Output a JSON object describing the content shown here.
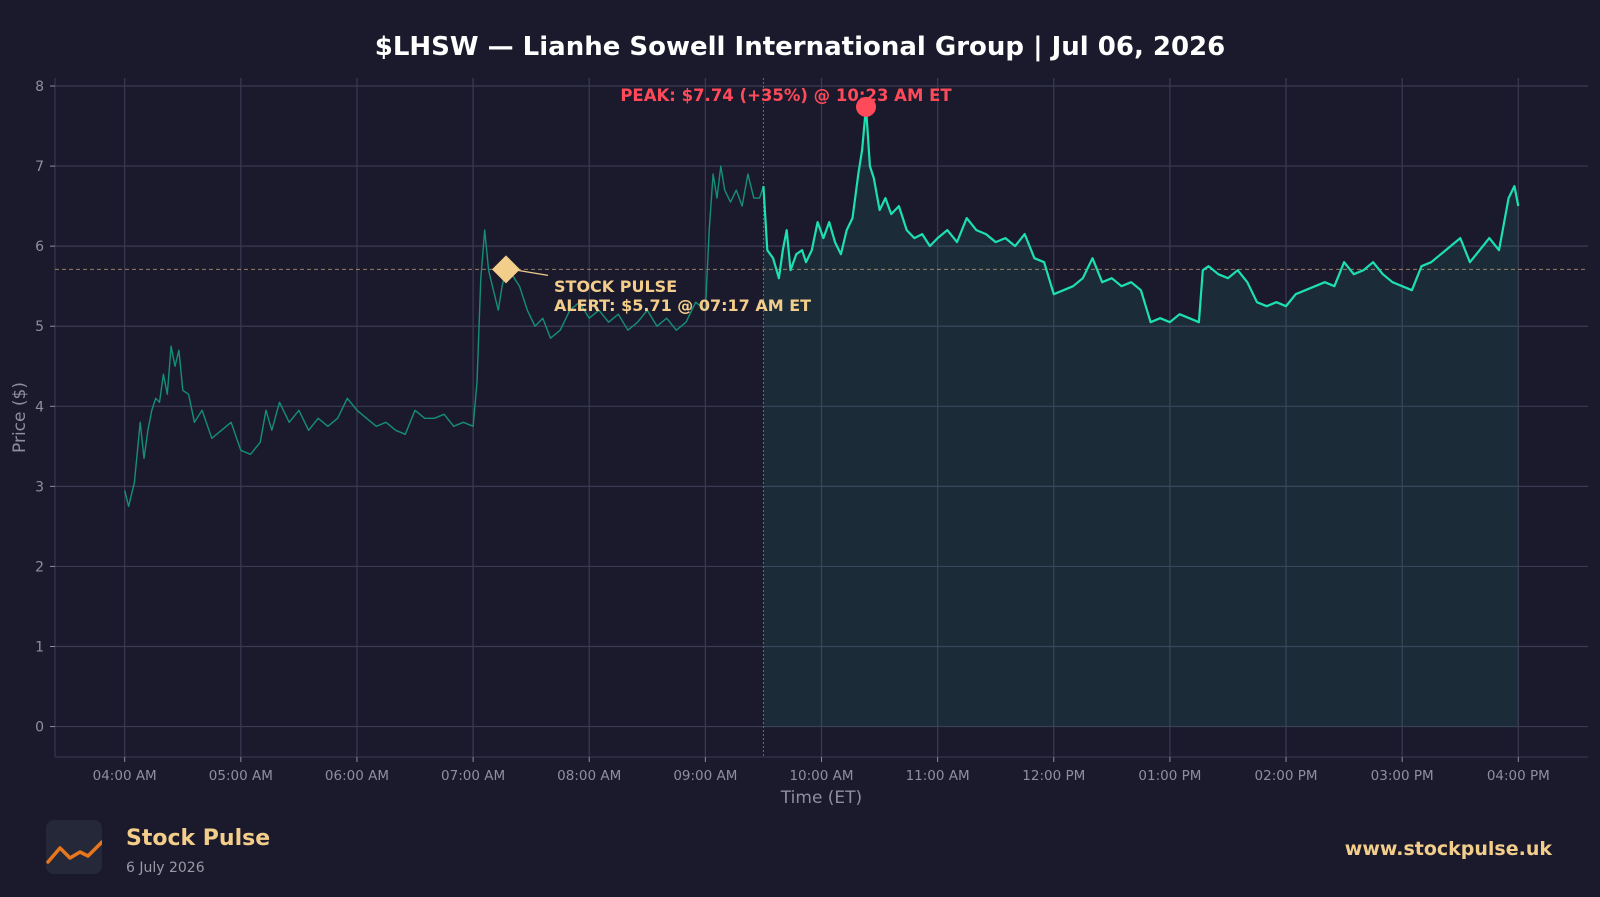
{
  "chart_data": {
    "type": "line",
    "title": "$LHSW — Lianhe Sowell International Group  |  Jul 06, 2026",
    "xlabel": "Time (ET)",
    "ylabel": "Price ($)",
    "ylim": [
      -0.38,
      8.1
    ],
    "xlim": [
      "03:24 AM",
      "04:36 PM"
    ],
    "yticks": [
      0,
      1,
      2,
      3,
      4,
      5,
      6,
      7,
      8
    ],
    "xticks": [
      "04:00 AM",
      "05:00 AM",
      "06:00 AM",
      "07:00 AM",
      "08:00 AM",
      "09:00 AM",
      "10:00 AM",
      "11:00 AM",
      "12:00 PM",
      "01:00 PM",
      "02:00 PM",
      "03:00 PM",
      "04:00 PM"
    ],
    "grid": true,
    "market_open": "09:30 AM",
    "series": [
      {
        "session": "pre-market",
        "points": [
          [
            "04:00 AM",
            2.95
          ],
          [
            "04:02 AM",
            2.75
          ],
          [
            "04:05 AM",
            3.05
          ],
          [
            "04:08 AM",
            3.8
          ],
          [
            "04:10 AM",
            3.35
          ],
          [
            "04:12 AM",
            3.7
          ],
          [
            "04:14 AM",
            3.95
          ],
          [
            "04:16 AM",
            4.1
          ],
          [
            "04:18 AM",
            4.05
          ],
          [
            "04:20 AM",
            4.4
          ],
          [
            "04:22 AM",
            4.15
          ],
          [
            "04:24 AM",
            4.75
          ],
          [
            "04:26 AM",
            4.5
          ],
          [
            "04:28 AM",
            4.7
          ],
          [
            "04:30 AM",
            4.2
          ],
          [
            "04:33 AM",
            4.15
          ],
          [
            "04:36 AM",
            3.8
          ],
          [
            "04:40 AM",
            3.95
          ],
          [
            "04:45 AM",
            3.6
          ],
          [
            "04:50 AM",
            3.7
          ],
          [
            "04:55 AM",
            3.8
          ],
          [
            "05:00 AM",
            3.45
          ],
          [
            "05:05 AM",
            3.4
          ],
          [
            "05:10 AM",
            3.55
          ],
          [
            "05:13 AM",
            3.95
          ],
          [
            "05:16 AM",
            3.7
          ],
          [
            "05:20 AM",
            4.05
          ],
          [
            "05:25 AM",
            3.8
          ],
          [
            "05:30 AM",
            3.95
          ],
          [
            "05:35 AM",
            3.7
          ],
          [
            "05:40 AM",
            3.85
          ],
          [
            "05:45 AM",
            3.75
          ],
          [
            "05:50 AM",
            3.85
          ],
          [
            "05:55 AM",
            4.1
          ],
          [
            "06:00 AM",
            3.95
          ],
          [
            "06:05 AM",
            3.85
          ],
          [
            "06:10 AM",
            3.75
          ],
          [
            "06:15 AM",
            3.8
          ],
          [
            "06:20 AM",
            3.7
          ],
          [
            "06:25 AM",
            3.65
          ],
          [
            "06:30 AM",
            3.95
          ],
          [
            "06:35 AM",
            3.85
          ],
          [
            "06:40 AM",
            3.85
          ],
          [
            "06:45 AM",
            3.9
          ],
          [
            "06:50 AM",
            3.75
          ],
          [
            "06:55 AM",
            3.8
          ],
          [
            "07:00 AM",
            3.75
          ],
          [
            "07:02 AM",
            4.3
          ],
          [
            "07:04 AM",
            5.6
          ],
          [
            "07:06 AM",
            6.2
          ],
          [
            "07:08 AM",
            5.7
          ],
          [
            "07:10 AM",
            5.5
          ],
          [
            "07:13 AM",
            5.2
          ],
          [
            "07:15 AM",
            5.5
          ],
          [
            "07:17 AM",
            5.71
          ],
          [
            "07:20 AM",
            5.65
          ],
          [
            "07:24 AM",
            5.5
          ],
          [
            "07:28 AM",
            5.2
          ],
          [
            "07:32 AM",
            5.0
          ],
          [
            "07:36 AM",
            5.1
          ],
          [
            "07:40 AM",
            4.85
          ],
          [
            "07:45 AM",
            4.95
          ],
          [
            "07:50 AM",
            5.2
          ],
          [
            "07:55 AM",
            5.3
          ],
          [
            "08:00 AM",
            5.1
          ],
          [
            "08:05 AM",
            5.2
          ],
          [
            "08:10 AM",
            5.05
          ],
          [
            "08:15 AM",
            5.15
          ],
          [
            "08:20 AM",
            4.95
          ],
          [
            "08:25 AM",
            5.05
          ],
          [
            "08:30 AM",
            5.2
          ],
          [
            "08:35 AM",
            5.0
          ],
          [
            "08:40 AM",
            5.1
          ],
          [
            "08:45 AM",
            4.95
          ],
          [
            "08:50 AM",
            5.05
          ],
          [
            "08:55 AM",
            5.3
          ],
          [
            "09:00 AM",
            5.2
          ],
          [
            "09:02 AM",
            6.2
          ],
          [
            "09:04 AM",
            6.9
          ],
          [
            "09:06 AM",
            6.6
          ],
          [
            "09:08 AM",
            7.0
          ],
          [
            "09:10 AM",
            6.7
          ],
          [
            "09:13 AM",
            6.55
          ],
          [
            "09:16 AM",
            6.7
          ],
          [
            "09:19 AM",
            6.5
          ],
          [
            "09:22 AM",
            6.9
          ],
          [
            "09:25 AM",
            6.6
          ],
          [
            "09:28 AM",
            6.6
          ],
          [
            "09:30 AM",
            6.75
          ]
        ]
      },
      {
        "session": "regular",
        "points": [
          [
            "09:30 AM",
            6.75
          ],
          [
            "09:32 AM",
            5.95
          ],
          [
            "09:35 AM",
            5.85
          ],
          [
            "09:38 AM",
            5.6
          ],
          [
            "09:40 AM",
            5.95
          ],
          [
            "09:42 AM",
            6.2
          ],
          [
            "09:44 AM",
            5.7
          ],
          [
            "09:47 AM",
            5.9
          ],
          [
            "09:50 AM",
            5.95
          ],
          [
            "09:52 AM",
            5.8
          ],
          [
            "09:55 AM",
            5.95
          ],
          [
            "09:58 AM",
            6.3
          ],
          [
            "10:01 AM",
            6.1
          ],
          [
            "10:04 AM",
            6.3
          ],
          [
            "10:07 AM",
            6.05
          ],
          [
            "10:10 AM",
            5.9
          ],
          [
            "10:13 AM",
            6.2
          ],
          [
            "10:16 AM",
            6.35
          ],
          [
            "10:19 AM",
            6.9
          ],
          [
            "10:21 AM",
            7.2
          ],
          [
            "10:23 AM",
            7.74
          ],
          [
            "10:25 AM",
            7.0
          ],
          [
            "10:27 AM",
            6.85
          ],
          [
            "10:30 AM",
            6.45
          ],
          [
            "10:33 AM",
            6.6
          ],
          [
            "10:36 AM",
            6.4
          ],
          [
            "10:40 AM",
            6.5
          ],
          [
            "10:44 AM",
            6.2
          ],
          [
            "10:48 AM",
            6.1
          ],
          [
            "10:52 AM",
            6.15
          ],
          [
            "10:56 AM",
            6.0
          ],
          [
            "11:00 AM",
            6.1
          ],
          [
            "11:05 AM",
            6.2
          ],
          [
            "11:10 AM",
            6.05
          ],
          [
            "11:15 AM",
            6.35
          ],
          [
            "11:20 AM",
            6.2
          ],
          [
            "11:25 AM",
            6.15
          ],
          [
            "11:30 AM",
            6.05
          ],
          [
            "11:35 AM",
            6.1
          ],
          [
            "11:40 AM",
            6.0
          ],
          [
            "11:45 AM",
            6.15
          ],
          [
            "11:50 AM",
            5.85
          ],
          [
            "11:55 AM",
            5.8
          ],
          [
            "12:00 PM",
            5.4
          ],
          [
            "12:05 PM",
            5.45
          ],
          [
            "12:10 PM",
            5.5
          ],
          [
            "12:15 PM",
            5.6
          ],
          [
            "12:20 PM",
            5.85
          ],
          [
            "12:25 PM",
            5.55
          ],
          [
            "12:30 PM",
            5.6
          ],
          [
            "12:35 PM",
            5.5
          ],
          [
            "12:40 PM",
            5.55
          ],
          [
            "12:45 PM",
            5.45
          ],
          [
            "12:50 PM",
            5.05
          ],
          [
            "12:55 PM",
            5.1
          ],
          [
            "01:00 PM",
            5.05
          ],
          [
            "01:05 PM",
            5.15
          ],
          [
            "01:10 PM",
            5.1
          ],
          [
            "01:15 PM",
            5.05
          ],
          [
            "01:17 PM",
            5.7
          ],
          [
            "01:20 PM",
            5.75
          ],
          [
            "01:25 PM",
            5.65
          ],
          [
            "01:30 PM",
            5.6
          ],
          [
            "01:35 PM",
            5.7
          ],
          [
            "01:40 PM",
            5.55
          ],
          [
            "01:45 PM",
            5.3
          ],
          [
            "01:50 PM",
            5.25
          ],
          [
            "01:55 PM",
            5.3
          ],
          [
            "02:00 PM",
            5.25
          ],
          [
            "02:05 PM",
            5.4
          ],
          [
            "02:10 PM",
            5.45
          ],
          [
            "02:15 PM",
            5.5
          ],
          [
            "02:20 PM",
            5.55
          ],
          [
            "02:25 PM",
            5.5
          ],
          [
            "02:30 PM",
            5.8
          ],
          [
            "02:35 PM",
            5.65
          ],
          [
            "02:40 PM",
            5.7
          ],
          [
            "02:45 PM",
            5.8
          ],
          [
            "02:50 PM",
            5.65
          ],
          [
            "02:55 PM",
            5.55
          ],
          [
            "03:00 PM",
            5.5
          ],
          [
            "03:05 PM",
            5.45
          ],
          [
            "03:10 PM",
            5.75
          ],
          [
            "03:15 PM",
            5.8
          ],
          [
            "03:20 PM",
            5.9
          ],
          [
            "03:25 PM",
            6.0
          ],
          [
            "03:30 PM",
            6.1
          ],
          [
            "03:35 PM",
            5.8
          ],
          [
            "03:40 PM",
            5.95
          ],
          [
            "03:45 PM",
            6.1
          ],
          [
            "03:50 PM",
            5.95
          ],
          [
            "03:55 PM",
            6.6
          ],
          [
            "03:58 PM",
            6.75
          ],
          [
            "04:00 PM",
            6.5
          ]
        ]
      }
    ],
    "reference_line": {
      "value": 5.71
    },
    "annotations": {
      "peak": {
        "time": "10:23 AM",
        "price": 7.74,
        "text": "PEAK: $7.74 (+35%) @ 10:23 AM ET"
      },
      "alert": {
        "time": "07:17 AM",
        "price": 5.71,
        "line1": "STOCK PULSE",
        "line2": "ALERT: $5.71 @ 07:17 AM ET"
      }
    },
    "colors": {
      "background": "#1b1a2d",
      "line": "#1de0b0",
      "premarket_line": "#148f76",
      "peak": "#ff4a5a",
      "alert": "#f3cd8a",
      "grid": "#3b3a52",
      "axis_text": "#8e8e9c"
    }
  },
  "footer": {
    "brand_name": "Stock Pulse",
    "brand_date": "6 July 2026",
    "website": "www.stockpulse.uk",
    "logo_icon": "trend-line-icon"
  }
}
